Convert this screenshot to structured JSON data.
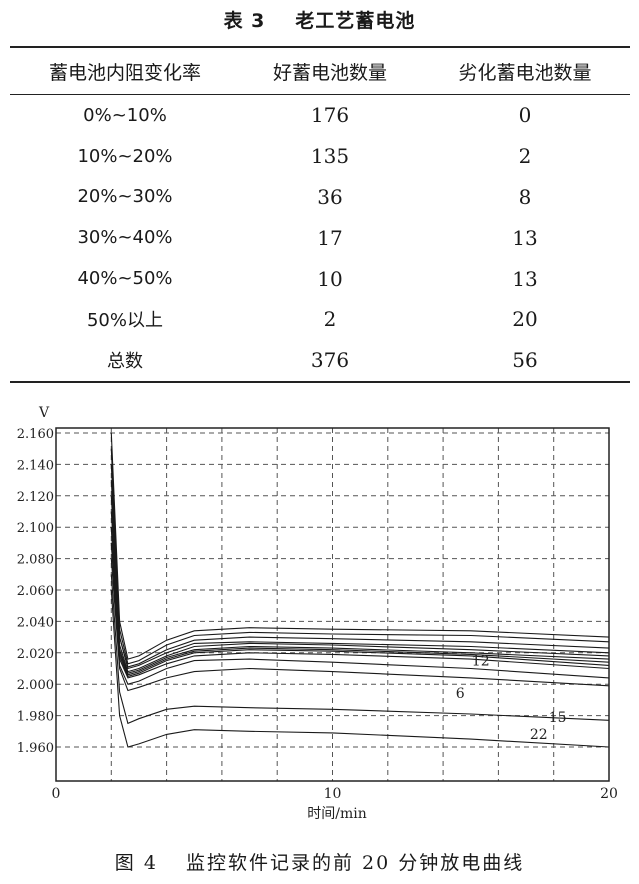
{
  "table": {
    "number": "表 3",
    "title": "老工艺蓄电池",
    "headers": [
      "蓄电池内阻变化率",
      "好蓄电池数量",
      "劣化蓄电池数量"
    ],
    "rows": [
      [
        "0%~10%",
        "176",
        "0"
      ],
      [
        "10%~20%",
        "135",
        "2"
      ],
      [
        "20%~30%",
        "36",
        "8"
      ],
      [
        "30%~40%",
        "17",
        "13"
      ],
      [
        "40%~50%",
        "10",
        "13"
      ],
      [
        "50%以上",
        "2",
        "20"
      ],
      [
        "总数",
        "376",
        "56"
      ]
    ]
  },
  "figure": {
    "number": "图 4",
    "caption": "监控软件记录的前 20 分钟放电曲线"
  },
  "chart_data": {
    "type": "line",
    "ylabel": "V",
    "xlabel": "时间/min",
    "xlim": [
      0,
      20
    ],
    "ylim": [
      1.955,
      2.165
    ],
    "yticks": [
      "2.160",
      "2.140",
      "2.120",
      "2.100",
      "2.080",
      "2.060",
      "2.040",
      "2.020",
      "2.000",
      "1.980",
      "1.960"
    ],
    "xticks": [
      "0",
      "10",
      "20"
    ],
    "grid": true,
    "series": [
      {
        "name": "",
        "x": [
          2.0,
          2.3,
          2.6,
          3.0,
          4.0,
          5.0,
          7.0,
          10.0,
          15.0,
          20.0
        ],
        "y": [
          2.16,
          2.04,
          2.016,
          2.018,
          2.028,
          2.034,
          2.036,
          2.035,
          2.034,
          2.03
        ]
      },
      {
        "name": "",
        "x": [
          2.0,
          2.3,
          2.6,
          3.0,
          4.0,
          5.0,
          7.0,
          10.0,
          15.0,
          20.0
        ],
        "y": [
          2.15,
          2.035,
          2.013,
          2.015,
          2.025,
          2.031,
          2.033,
          2.032,
          2.031,
          2.027
        ]
      },
      {
        "name": "",
        "x": [
          2.0,
          2.3,
          2.6,
          3.0,
          4.0,
          5.0,
          7.0,
          10.0,
          15.0,
          20.0
        ],
        "y": [
          2.14,
          2.03,
          2.011,
          2.013,
          2.022,
          2.028,
          2.03,
          2.029,
          2.027,
          2.023
        ]
      },
      {
        "name": "",
        "x": [
          2.0,
          2.3,
          2.6,
          3.0,
          4.0,
          5.0,
          7.0,
          10.0,
          15.0,
          20.0
        ],
        "y": [
          2.13,
          2.03,
          2.01,
          2.012,
          2.02,
          2.026,
          2.027,
          2.026,
          2.024,
          2.02
        ]
      },
      {
        "name": "",
        "x": [
          2.0,
          2.3,
          2.6,
          3.0,
          4.0,
          5.0,
          7.0,
          10.0,
          15.0,
          20.0
        ],
        "y": [
          2.12,
          2.025,
          2.008,
          2.01,
          2.018,
          2.024,
          2.026,
          2.025,
          2.022,
          2.018
        ]
      },
      {
        "name": "",
        "x": [
          2.0,
          2.3,
          2.6,
          3.0,
          4.0,
          5.0,
          7.0,
          10.0,
          15.0,
          20.0
        ],
        "y": [
          2.11,
          2.022,
          2.007,
          2.009,
          2.017,
          2.022,
          2.024,
          2.023,
          2.02,
          2.016
        ]
      },
      {
        "name": "",
        "x": [
          2.0,
          2.3,
          2.6,
          3.0,
          4.0,
          5.0,
          7.0,
          10.0,
          15.0,
          20.0
        ],
        "y": [
          2.1,
          2.02,
          2.006,
          2.008,
          2.016,
          2.021,
          2.023,
          2.022,
          2.019,
          2.014
        ]
      },
      {
        "name": "",
        "x": [
          2.0,
          2.3,
          2.6,
          3.0,
          4.0,
          5.0,
          7.0,
          10.0,
          15.0,
          20.0
        ],
        "y": [
          2.1,
          2.018,
          2.005,
          2.007,
          2.015,
          2.02,
          2.022,
          2.021,
          2.018,
          2.012
        ]
      },
      {
        "name": "",
        "x": [
          2.0,
          2.3,
          2.6,
          3.0,
          4.0,
          5.0,
          7.0,
          10.0,
          15.0,
          20.0
        ],
        "y": [
          2.09,
          2.016,
          2.004,
          2.006,
          2.013,
          2.018,
          2.02,
          2.019,
          2.016,
          2.01
        ]
      },
      {
        "name": "12",
        "x": [
          2.0,
          2.3,
          2.6,
          3.0,
          4.0,
          5.0,
          7.0,
          10.0,
          15.0,
          20.0
        ],
        "y": [
          2.09,
          2.012,
          2.0,
          2.002,
          2.01,
          2.015,
          2.016,
          2.014,
          2.01,
          2.004
        ]
      },
      {
        "name": "6",
        "x": [
          2.0,
          2.3,
          2.6,
          3.0,
          4.0,
          5.0,
          7.0,
          10.0,
          15.0,
          20.0
        ],
        "y": [
          2.08,
          2.01,
          1.996,
          1.998,
          2.004,
          2.008,
          2.01,
          2.008,
          2.004,
          1.999
        ]
      },
      {
        "name": "15",
        "x": [
          2.0,
          2.3,
          2.6,
          3.0,
          4.0,
          5.0,
          7.0,
          10.0,
          15.0,
          20.0
        ],
        "y": [
          2.07,
          1.995,
          1.975,
          1.978,
          1.984,
          1.986,
          1.985,
          1.984,
          1.981,
          1.977
        ]
      },
      {
        "name": "22",
        "x": [
          2.0,
          2.3,
          2.6,
          3.0,
          4.0,
          5.0,
          7.0,
          10.0,
          15.0,
          20.0
        ],
        "y": [
          2.06,
          1.98,
          1.96,
          1.962,
          1.968,
          1.971,
          1.97,
          1.969,
          1.965,
          1.96
        ]
      }
    ]
  }
}
